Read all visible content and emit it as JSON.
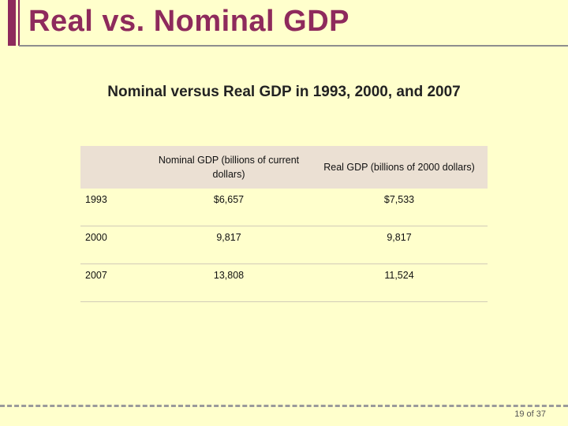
{
  "header": {
    "title": "Real vs. Nominal GDP"
  },
  "table_title": "Nominal versus Real GDP in 1993, 2000, and 2007",
  "table": {
    "columns": [
      "",
      "Nominal GDP (billions of current dollars)",
      "Real GDP (billions of 2000 dollars)"
    ],
    "rows": [
      {
        "year": "1993",
        "nominal": "$6,657",
        "real": "$7,533"
      },
      {
        "year": "2000",
        "nominal": "9,817",
        "real": "9,817"
      },
      {
        "year": "2007",
        "nominal": "13,808",
        "real": "11,524"
      }
    ]
  },
  "footer": {
    "page": "19 of 37"
  },
  "colors": {
    "accent": "#8e2a5c",
    "background": "#ffffcc",
    "header_fill": "#ebe0d3"
  }
}
